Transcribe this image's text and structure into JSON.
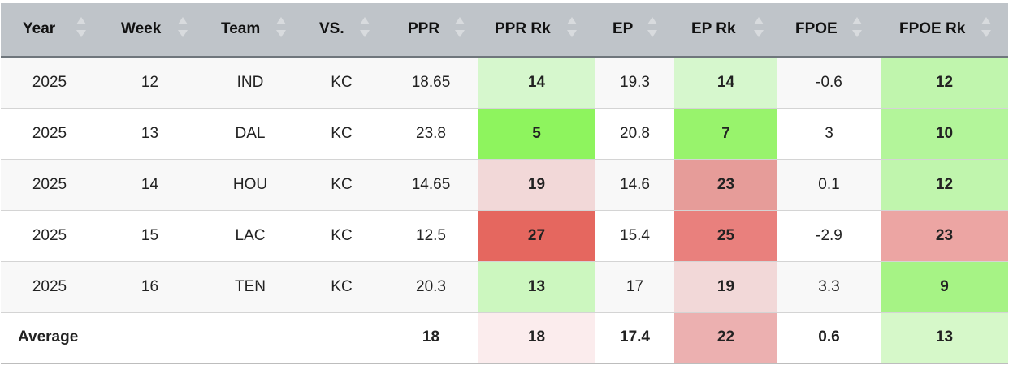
{
  "table": {
    "columns": [
      {
        "key": "year",
        "label": "Year",
        "lbl_left": 27,
        "sort_left": 93
      },
      {
        "key": "week",
        "label": "Week",
        "lbl_left": 28,
        "sort_left": 98
      },
      {
        "key": "team",
        "label": "Team",
        "lbl_left": 24,
        "sort_left": 92
      },
      {
        "key": "vs",
        "label": "VS.",
        "lbl_left": 25,
        "sort_left": 75
      },
      {
        "key": "ppr",
        "label": "PPR",
        "lbl_left": 29,
        "sort_left": 87
      },
      {
        "key": "ppr_rk",
        "label": "PPR Rk",
        "lbl_left": 21,
        "sort_left": 110
      },
      {
        "key": "ep",
        "label": "EP",
        "lbl_left": 21,
        "sort_left": 64
      },
      {
        "key": "ep_rk",
        "label": "EP Rk",
        "lbl_left": 21,
        "sort_left": 98
      },
      {
        "key": "fpoe",
        "label": "FPOE",
        "lbl_left": 22,
        "sort_left": 92
      },
      {
        "key": "fpoe_rk",
        "label": "FPOE Rk",
        "lbl_left": 23,
        "sort_left": 124
      }
    ],
    "rows": [
      {
        "year": "2025",
        "week": "12",
        "team": "IND",
        "vs": "KC",
        "ppr": "18.65",
        "ppr_rk": "14",
        "ep": "19.3",
        "ep_rk": "14",
        "fpoe": "-0.6",
        "fpoe_rk": "12",
        "colors": {
          "ppr_rk": "#d6f7cd",
          "ep_rk": "#d6f7cd",
          "fpoe_rk": "#c0f5ad"
        }
      },
      {
        "year": "2025",
        "week": "13",
        "team": "DAL",
        "vs": "KC",
        "ppr": "23.8",
        "ppr_rk": "5",
        "ep": "20.8",
        "ep_rk": "7",
        "fpoe": "3",
        "fpoe_rk": "10",
        "colors": {
          "ppr_rk": "#8ef45e",
          "ep_rk": "#98f36c",
          "fpoe_rk": "#b3f59a"
        }
      },
      {
        "year": "2025",
        "week": "14",
        "team": "HOU",
        "vs": "KC",
        "ppr": "14.65",
        "ppr_rk": "19",
        "ep": "14.6",
        "ep_rk": "23",
        "fpoe": "0.1",
        "fpoe_rk": "12",
        "colors": {
          "ppr_rk": "#f2d8d8",
          "ep_rk": "#e69c99",
          "fpoe_rk": "#c0f5ad"
        }
      },
      {
        "year": "2025",
        "week": "15",
        "team": "LAC",
        "vs": "KC",
        "ppr": "12.5",
        "ppr_rk": "27",
        "ep": "15.4",
        "ep_rk": "25",
        "fpoe": "-2.9",
        "fpoe_rk": "23",
        "colors": {
          "ppr_rk": "#e5675f",
          "ep_rk": "#e9807d",
          "fpoe_rk": "#eca5a3"
        }
      },
      {
        "year": "2025",
        "week": "16",
        "team": "TEN",
        "vs": "KC",
        "ppr": "20.3",
        "ppr_rk": "13",
        "ep": "17",
        "ep_rk": "19",
        "fpoe": "3.3",
        "fpoe_rk": "9",
        "colors": {
          "ppr_rk": "#ccf7bf",
          "ep_rk": "#f2d8d8",
          "fpoe_rk": "#a6f385"
        }
      }
    ],
    "average": {
      "label": "Average",
      "ppr": "18",
      "ppr_rk": "18",
      "ep": "17.4",
      "ep_rk": "22",
      "fpoe": "0.6",
      "fpoe_rk": "13",
      "colors": {
        "ppr_rk": "#fbeced",
        "ep_rk": "#ecb0b0",
        "fpoe_rk": "#d6f8c9"
      }
    }
  }
}
